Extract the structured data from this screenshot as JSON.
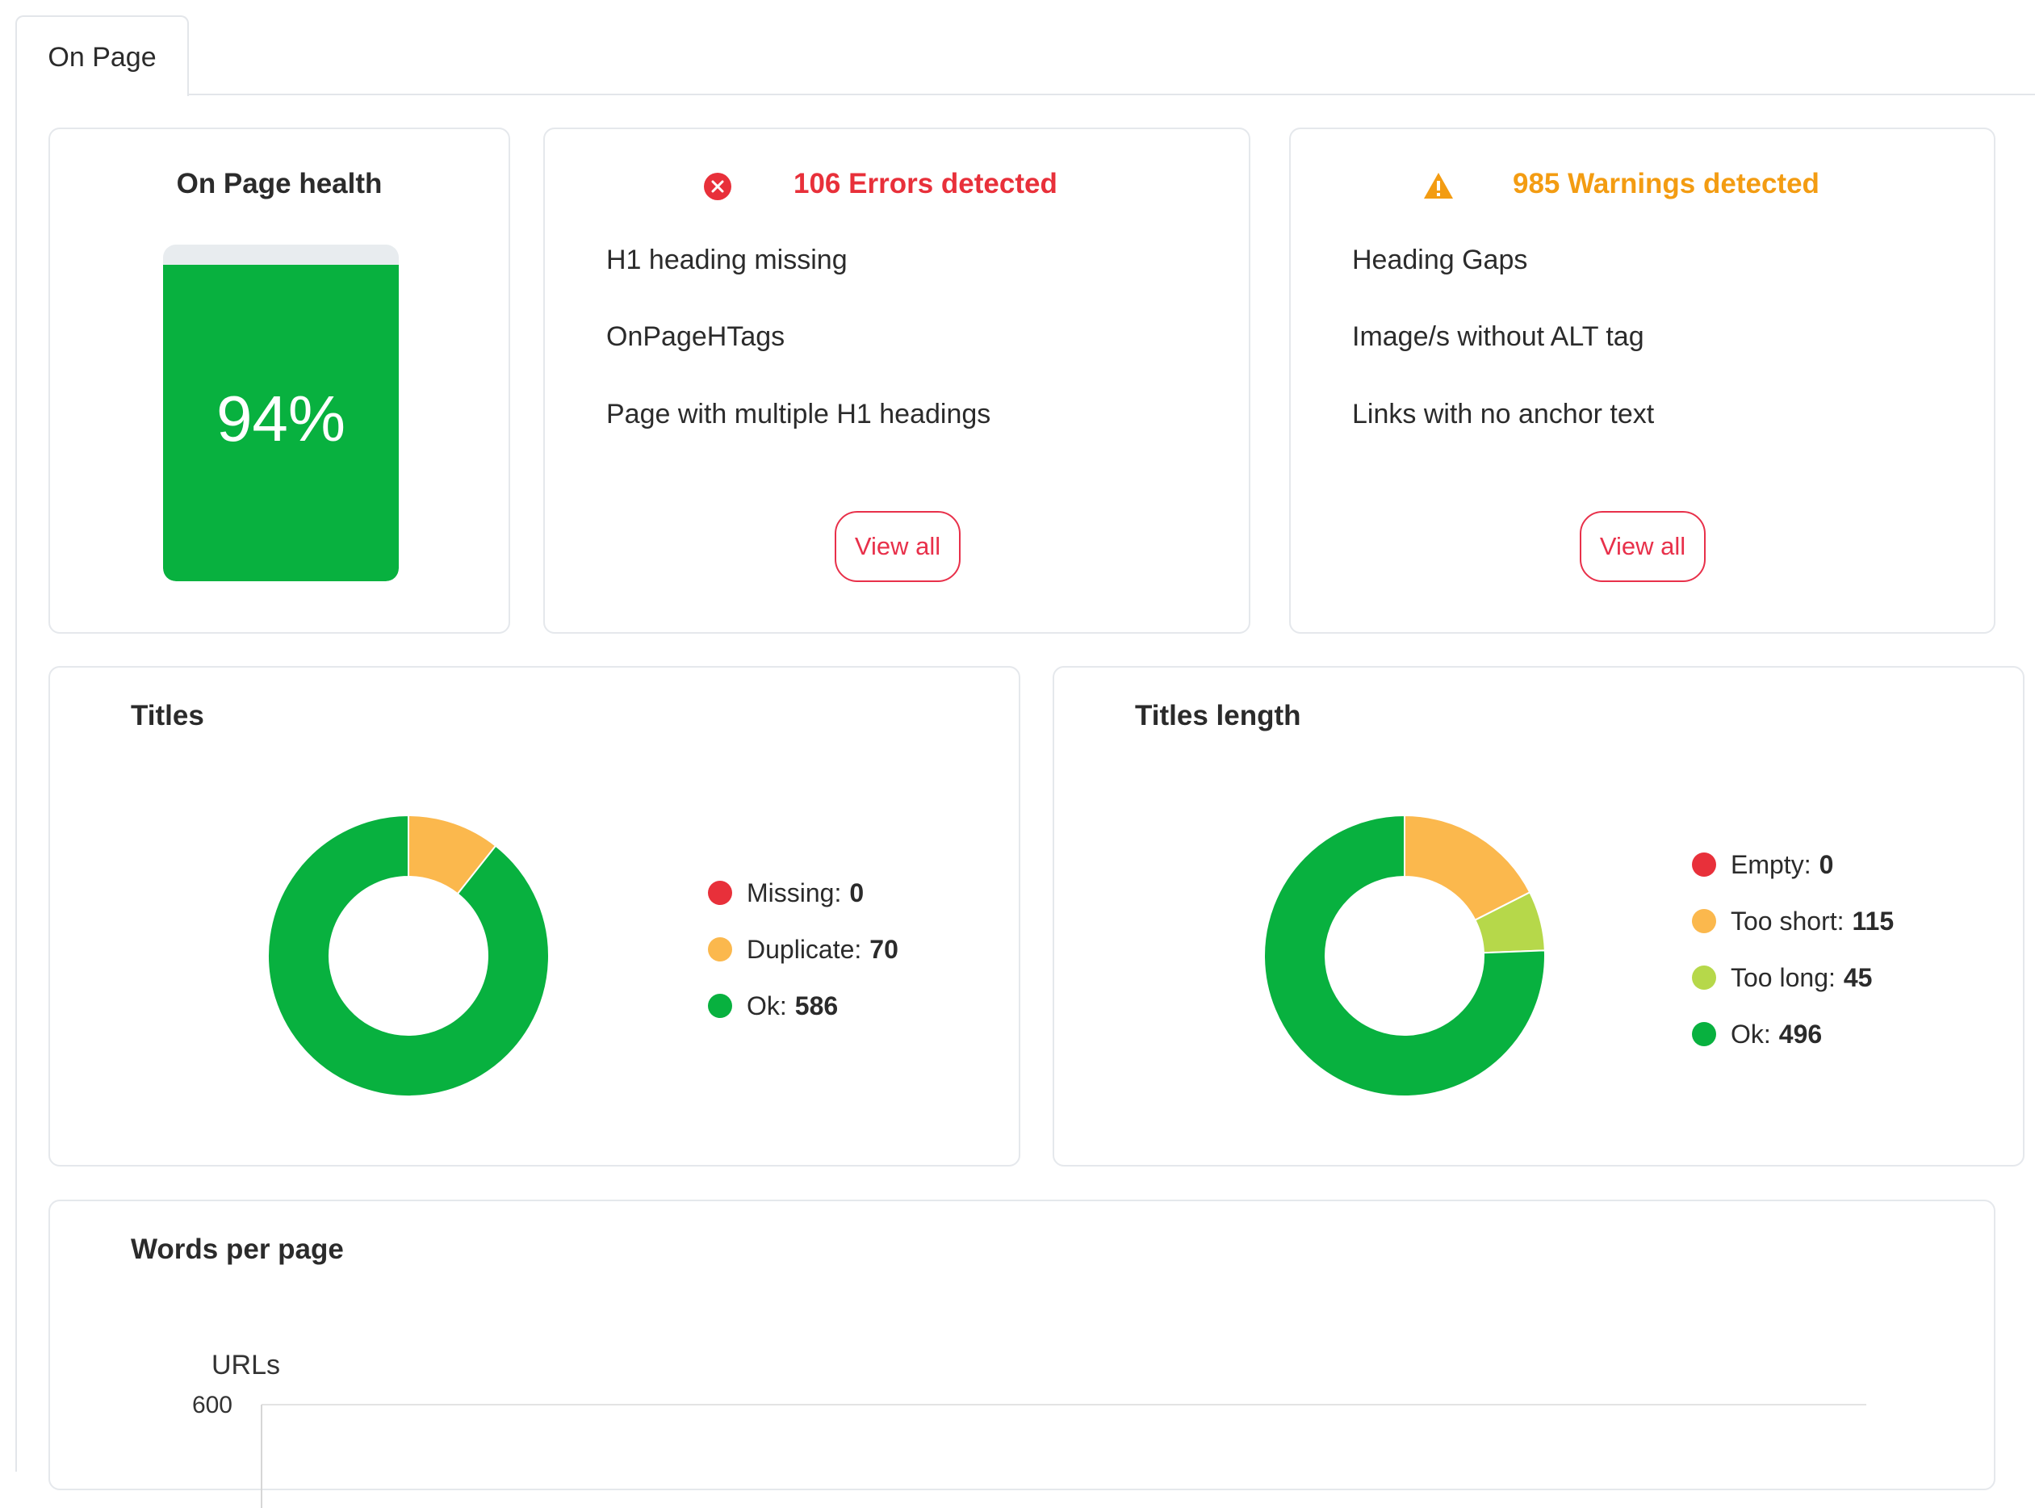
{
  "tabs": [
    {
      "label": "On Page"
    }
  ],
  "health": {
    "title": "On Page health",
    "value": 94,
    "value_label": "94%",
    "color": "#08b13f"
  },
  "errors": {
    "title": "106 Errors detected",
    "color": "#e8303a",
    "items": [
      "H1 heading missing",
      "OnPageHTags",
      "Page with multiple H1 headings"
    ],
    "button": "View all"
  },
  "warnings": {
    "title": "985 Warnings detected",
    "color": "#f39c12",
    "items": [
      "Heading Gaps",
      "Image/s without ALT tag",
      "Links with no anchor text"
    ],
    "button": "View all"
  },
  "titles_card": {
    "title": "Titles"
  },
  "titles_length_card": {
    "title": "Titles length"
  },
  "words_card": {
    "title": "Words per page"
  },
  "chart_data": [
    {
      "type": "pie",
      "title": "Titles",
      "categories": [
        "Missing",
        "Duplicate",
        "Ok"
      ],
      "values": [
        0,
        70,
        586
      ],
      "colors": [
        "#e8303a",
        "#fbb84d",
        "#08b13f"
      ],
      "donut": true,
      "legend": "right"
    },
    {
      "type": "pie",
      "title": "Titles length",
      "categories": [
        "Empty",
        "Too short",
        "Too long",
        "Ok"
      ],
      "values": [
        0,
        115,
        45,
        496
      ],
      "colors": [
        "#e8303a",
        "#fbb84d",
        "#b6d84a",
        "#08b13f"
      ],
      "donut": true,
      "legend": "right"
    },
    {
      "type": "bar",
      "title": "Words per page",
      "ylabel": "URLs",
      "yticks": [
        600
      ],
      "ylim": [
        0,
        600
      ],
      "categories": [],
      "values": []
    }
  ]
}
